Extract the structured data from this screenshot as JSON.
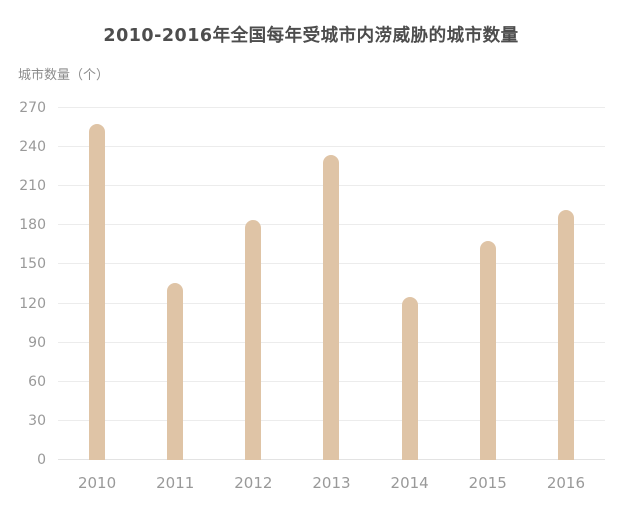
{
  "page": {
    "background": "#ffffff"
  },
  "chart_data": {
    "type": "bar",
    "title": "2010-2016年全国每年受城市内涝威胁的城市数量",
    "ylabel": "城市数量（个）",
    "xlabel": "",
    "categories": [
      "2010",
      "2011",
      "2012",
      "2013",
      "2014",
      "2015",
      "2016"
    ],
    "values": [
      258,
      136,
      184,
      234,
      125,
      168,
      192
    ],
    "ylim": [
      0,
      270
    ],
    "yticks": [
      0,
      30,
      60,
      90,
      120,
      150,
      180,
      210,
      240,
      270
    ],
    "grid": true,
    "legend": false,
    "colors": {
      "bar": "#dfc4a6",
      "gridline": "#ececec",
      "axis_line": "#e3e3e3",
      "title_text": "#4d4d4d",
      "tick_text": "#999999",
      "ylabel_text": "#8c8c8c",
      "background": "#ffffff"
    }
  }
}
